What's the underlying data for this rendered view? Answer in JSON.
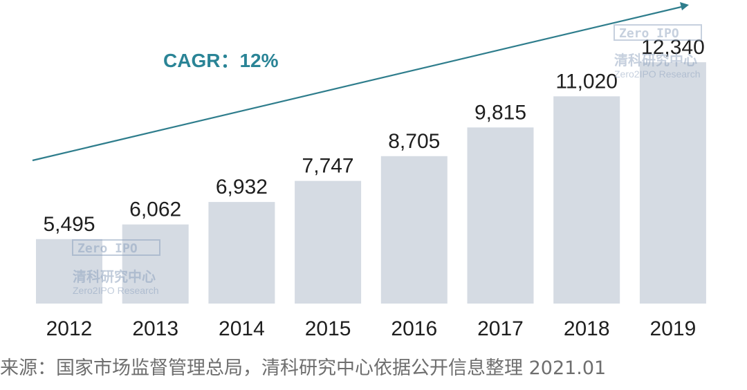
{
  "chart_data": {
    "type": "bar",
    "title": "",
    "xlabel": "",
    "ylabel": "",
    "categories": [
      "2012",
      "2013",
      "2014",
      "2015",
      "2016",
      "2017",
      "2018",
      "2019"
    ],
    "values": [
      5495,
      6062,
      6932,
      7747,
      8705,
      9815,
      11020,
      12340
    ],
    "value_labels": [
      "5,495",
      "6,062",
      "6,932",
      "7,747",
      "8,705",
      "9,815",
      "11,020",
      "12,340"
    ],
    "ylim": [
      3000,
      12340
    ],
    "grid": false,
    "annotation": "CAGR：12%"
  },
  "watermark": {
    "brand": "Zero IPO",
    "name_cn": "清科研究中心",
    "name_en": "Zero2IPO Research"
  },
  "source_note": "来源：国家市场监督管理总局，清科研究中心依据公开信息整理 2021.01",
  "colors": {
    "bar": "#d5dbe3",
    "arrow": "#2e7d8c",
    "annotation": "#2a8496",
    "label": "#1e1e1e",
    "watermark": "#8fa3bf"
  }
}
